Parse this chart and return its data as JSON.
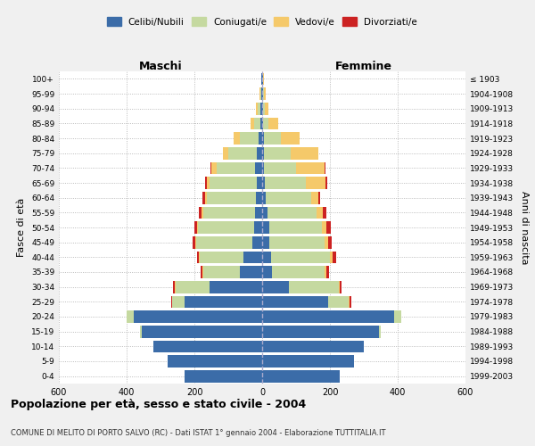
{
  "age_groups": [
    "0-4",
    "5-9",
    "10-14",
    "15-19",
    "20-24",
    "25-29",
    "30-34",
    "35-39",
    "40-44",
    "45-49",
    "50-54",
    "55-59",
    "60-64",
    "65-69",
    "70-74",
    "75-79",
    "80-84",
    "85-89",
    "90-94",
    "95-99",
    "100+"
  ],
  "birth_years": [
    "1999-2003",
    "1994-1998",
    "1989-1993",
    "1984-1988",
    "1979-1983",
    "1974-1978",
    "1969-1973",
    "1964-1968",
    "1959-1963",
    "1954-1958",
    "1949-1953",
    "1944-1948",
    "1939-1943",
    "1934-1938",
    "1929-1933",
    "1924-1928",
    "1919-1923",
    "1914-1918",
    "1909-1913",
    "1904-1908",
    "≤ 1903"
  ],
  "male_celibi": [
    230,
    280,
    320,
    355,
    380,
    230,
    155,
    65,
    55,
    30,
    25,
    20,
    18,
    15,
    20,
    15,
    10,
    5,
    5,
    3,
    2
  ],
  "male_coniugati": [
    0,
    0,
    0,
    5,
    20,
    35,
    100,
    110,
    130,
    165,
    165,
    155,
    145,
    140,
    115,
    85,
    55,
    18,
    8,
    3,
    0
  ],
  "male_vedovi": [
    0,
    0,
    0,
    0,
    0,
    0,
    2,
    2,
    2,
    2,
    3,
    3,
    5,
    8,
    15,
    15,
    20,
    10,
    5,
    2,
    0
  ],
  "male_divorziati": [
    0,
    0,
    0,
    0,
    0,
    3,
    5,
    5,
    5,
    8,
    8,
    10,
    8,
    5,
    3,
    0,
    0,
    0,
    0,
    0,
    0
  ],
  "female_celibi": [
    230,
    270,
    300,
    345,
    390,
    195,
    80,
    30,
    25,
    20,
    20,
    15,
    10,
    8,
    5,
    5,
    5,
    3,
    3,
    3,
    2
  ],
  "female_coniugati": [
    0,
    0,
    0,
    5,
    20,
    60,
    145,
    155,
    175,
    165,
    155,
    145,
    135,
    120,
    95,
    80,
    50,
    15,
    5,
    2,
    0
  ],
  "female_vedovi": [
    0,
    0,
    0,
    0,
    0,
    2,
    5,
    5,
    8,
    10,
    15,
    20,
    20,
    60,
    85,
    80,
    55,
    30,
    10,
    5,
    2
  ],
  "female_divorziati": [
    0,
    0,
    0,
    0,
    0,
    5,
    5,
    8,
    10,
    10,
    12,
    10,
    5,
    3,
    2,
    0,
    0,
    0,
    0,
    0,
    0
  ],
  "color_celibi": "#3b6ca8",
  "color_coniugati": "#c5d9a0",
  "color_vedovi": "#f5c96a",
  "color_divorziati": "#cc2222",
  "xlim": 600,
  "title": "Popolazione per età, sesso e stato civile - 2004",
  "subtitle": "COMUNE DI MELITO DI PORTO SALVO (RC) - Dati ISTAT 1° gennaio 2004 - Elaborazione TUTTITALIA.IT",
  "ylabel": "Fasce di età",
  "ylabel_right": "Anni di nascita",
  "xlabel_maschi": "Maschi",
  "xlabel_femmine": "Femmine",
  "bg_color": "#f0f0f0",
  "plot_bg_color": "#ffffff"
}
